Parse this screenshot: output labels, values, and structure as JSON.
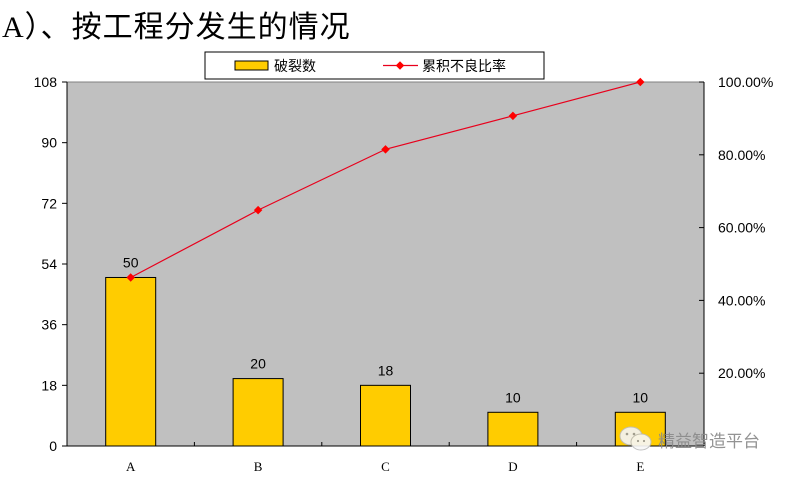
{
  "title": "A）、按工程分发生的情况",
  "legend": {
    "bar_label": "破裂数",
    "line_label": "累积不良比率"
  },
  "watermark": "精益智造平台",
  "colors": {
    "bar": "#FFCC00",
    "line": "#E8001C",
    "marker": "#FF0000",
    "plot_bg": "#C0C0C0"
  },
  "chart_data": {
    "type": "bar",
    "title": "A）、按工程分发生的情况",
    "categories": [
      "A",
      "B",
      "C",
      "D",
      "E"
    ],
    "series": [
      {
        "name": "破裂数",
        "type": "bar",
        "axis": "left",
        "values": [
          50,
          20,
          18,
          10,
          10
        ]
      },
      {
        "name": "累积不良比率",
        "type": "line",
        "axis": "right",
        "values": [
          46.3,
          64.8,
          81.5,
          90.7,
          100.0
        ]
      }
    ],
    "bar_labels": [
      "50",
      "20",
      "18",
      "10",
      "10"
    ],
    "xlabel": "",
    "ylabel": "",
    "ylim": [
      0,
      108
    ],
    "y_ticks": [
      "0",
      "18",
      "36",
      "54",
      "72",
      "90",
      "108"
    ],
    "y2lim": [
      0,
      100
    ],
    "y2_ticks": [
      "0.00%",
      "20.00%",
      "40.00%",
      "60.00%",
      "80.00%",
      "100.00%"
    ],
    "grid": false,
    "legend_position": "top"
  }
}
